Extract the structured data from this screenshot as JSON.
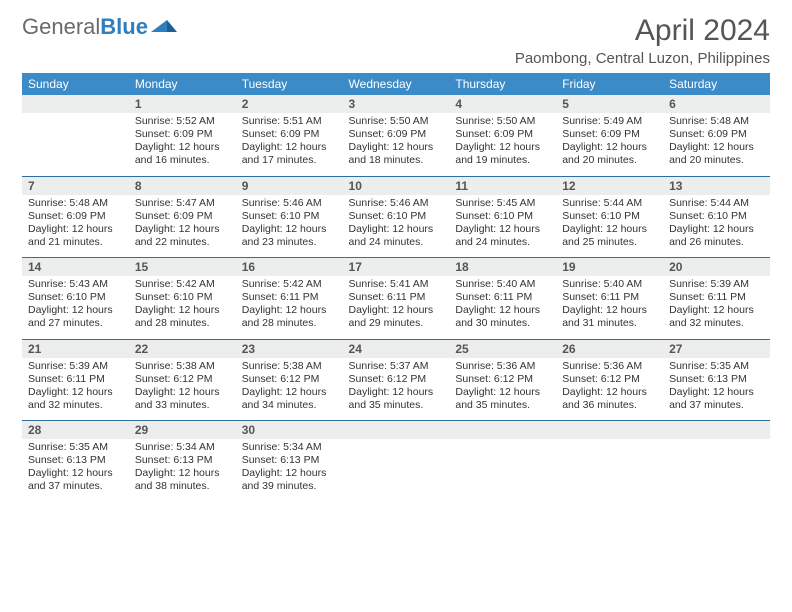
{
  "logo": {
    "text1": "General",
    "text2": "Blue"
  },
  "title": "April 2024",
  "location": "Paombong, Central Luzon, Philippines",
  "colors": {
    "header_bg": "#3b8bc8",
    "header_text": "#ffffff",
    "daynum_bg": "#eceeee",
    "rule": "#2f6fa0",
    "logo_gray": "#6b6b6b",
    "logo_blue": "#2f7ec0"
  },
  "weekdays": [
    "Sunday",
    "Monday",
    "Tuesday",
    "Wednesday",
    "Thursday",
    "Friday",
    "Saturday"
  ],
  "weeks": [
    [
      {
        "n": "",
        "sr": "",
        "ss": "",
        "dl": ""
      },
      {
        "n": "1",
        "sr": "Sunrise: 5:52 AM",
        "ss": "Sunset: 6:09 PM",
        "dl": "Daylight: 12 hours and 16 minutes."
      },
      {
        "n": "2",
        "sr": "Sunrise: 5:51 AM",
        "ss": "Sunset: 6:09 PM",
        "dl": "Daylight: 12 hours and 17 minutes."
      },
      {
        "n": "3",
        "sr": "Sunrise: 5:50 AM",
        "ss": "Sunset: 6:09 PM",
        "dl": "Daylight: 12 hours and 18 minutes."
      },
      {
        "n": "4",
        "sr": "Sunrise: 5:50 AM",
        "ss": "Sunset: 6:09 PM",
        "dl": "Daylight: 12 hours and 19 minutes."
      },
      {
        "n": "5",
        "sr": "Sunrise: 5:49 AM",
        "ss": "Sunset: 6:09 PM",
        "dl": "Daylight: 12 hours and 20 minutes."
      },
      {
        "n": "6",
        "sr": "Sunrise: 5:48 AM",
        "ss": "Sunset: 6:09 PM",
        "dl": "Daylight: 12 hours and 20 minutes."
      }
    ],
    [
      {
        "n": "7",
        "sr": "Sunrise: 5:48 AM",
        "ss": "Sunset: 6:09 PM",
        "dl": "Daylight: 12 hours and 21 minutes."
      },
      {
        "n": "8",
        "sr": "Sunrise: 5:47 AM",
        "ss": "Sunset: 6:09 PM",
        "dl": "Daylight: 12 hours and 22 minutes."
      },
      {
        "n": "9",
        "sr": "Sunrise: 5:46 AM",
        "ss": "Sunset: 6:10 PM",
        "dl": "Daylight: 12 hours and 23 minutes."
      },
      {
        "n": "10",
        "sr": "Sunrise: 5:46 AM",
        "ss": "Sunset: 6:10 PM",
        "dl": "Daylight: 12 hours and 24 minutes."
      },
      {
        "n": "11",
        "sr": "Sunrise: 5:45 AM",
        "ss": "Sunset: 6:10 PM",
        "dl": "Daylight: 12 hours and 24 minutes."
      },
      {
        "n": "12",
        "sr": "Sunrise: 5:44 AM",
        "ss": "Sunset: 6:10 PM",
        "dl": "Daylight: 12 hours and 25 minutes."
      },
      {
        "n": "13",
        "sr": "Sunrise: 5:44 AM",
        "ss": "Sunset: 6:10 PM",
        "dl": "Daylight: 12 hours and 26 minutes."
      }
    ],
    [
      {
        "n": "14",
        "sr": "Sunrise: 5:43 AM",
        "ss": "Sunset: 6:10 PM",
        "dl": "Daylight: 12 hours and 27 minutes."
      },
      {
        "n": "15",
        "sr": "Sunrise: 5:42 AM",
        "ss": "Sunset: 6:10 PM",
        "dl": "Daylight: 12 hours and 28 minutes."
      },
      {
        "n": "16",
        "sr": "Sunrise: 5:42 AM",
        "ss": "Sunset: 6:11 PM",
        "dl": "Daylight: 12 hours and 28 minutes."
      },
      {
        "n": "17",
        "sr": "Sunrise: 5:41 AM",
        "ss": "Sunset: 6:11 PM",
        "dl": "Daylight: 12 hours and 29 minutes."
      },
      {
        "n": "18",
        "sr": "Sunrise: 5:40 AM",
        "ss": "Sunset: 6:11 PM",
        "dl": "Daylight: 12 hours and 30 minutes."
      },
      {
        "n": "19",
        "sr": "Sunrise: 5:40 AM",
        "ss": "Sunset: 6:11 PM",
        "dl": "Daylight: 12 hours and 31 minutes."
      },
      {
        "n": "20",
        "sr": "Sunrise: 5:39 AM",
        "ss": "Sunset: 6:11 PM",
        "dl": "Daylight: 12 hours and 32 minutes."
      }
    ],
    [
      {
        "n": "21",
        "sr": "Sunrise: 5:39 AM",
        "ss": "Sunset: 6:11 PM",
        "dl": "Daylight: 12 hours and 32 minutes."
      },
      {
        "n": "22",
        "sr": "Sunrise: 5:38 AM",
        "ss": "Sunset: 6:12 PM",
        "dl": "Daylight: 12 hours and 33 minutes."
      },
      {
        "n": "23",
        "sr": "Sunrise: 5:38 AM",
        "ss": "Sunset: 6:12 PM",
        "dl": "Daylight: 12 hours and 34 minutes."
      },
      {
        "n": "24",
        "sr": "Sunrise: 5:37 AM",
        "ss": "Sunset: 6:12 PM",
        "dl": "Daylight: 12 hours and 35 minutes."
      },
      {
        "n": "25",
        "sr": "Sunrise: 5:36 AM",
        "ss": "Sunset: 6:12 PM",
        "dl": "Daylight: 12 hours and 35 minutes."
      },
      {
        "n": "26",
        "sr": "Sunrise: 5:36 AM",
        "ss": "Sunset: 6:12 PM",
        "dl": "Daylight: 12 hours and 36 minutes."
      },
      {
        "n": "27",
        "sr": "Sunrise: 5:35 AM",
        "ss": "Sunset: 6:13 PM",
        "dl": "Daylight: 12 hours and 37 minutes."
      }
    ],
    [
      {
        "n": "28",
        "sr": "Sunrise: 5:35 AM",
        "ss": "Sunset: 6:13 PM",
        "dl": "Daylight: 12 hours and 37 minutes."
      },
      {
        "n": "29",
        "sr": "Sunrise: 5:34 AM",
        "ss": "Sunset: 6:13 PM",
        "dl": "Daylight: 12 hours and 38 minutes."
      },
      {
        "n": "30",
        "sr": "Sunrise: 5:34 AM",
        "ss": "Sunset: 6:13 PM",
        "dl": "Daylight: 12 hours and 39 minutes."
      },
      {
        "n": "",
        "sr": "",
        "ss": "",
        "dl": ""
      },
      {
        "n": "",
        "sr": "",
        "ss": "",
        "dl": ""
      },
      {
        "n": "",
        "sr": "",
        "ss": "",
        "dl": ""
      },
      {
        "n": "",
        "sr": "",
        "ss": "",
        "dl": ""
      }
    ]
  ]
}
